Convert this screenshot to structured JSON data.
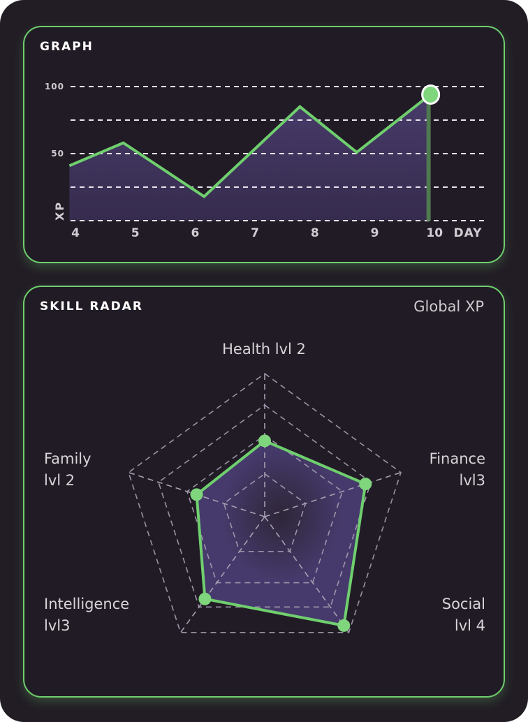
{
  "graph": {
    "title": "GRAPH",
    "chart_data": {
      "type": "area",
      "xlabel": "DAY",
      "ylabel": "XP",
      "x_ticks": [
        "4",
        "5",
        "6",
        "7",
        "8",
        "9",
        "10"
      ],
      "y_ticks": [
        "100",
        "50"
      ],
      "ylim": [
        0,
        100
      ],
      "grid": true,
      "points": [
        {
          "x": 3.9,
          "y": 41
        },
        {
          "x": 4.8,
          "y": 58
        },
        {
          "x": 6.15,
          "y": 18
        },
        {
          "x": 7.75,
          "y": 85
        },
        {
          "x": 8.7,
          "y": 51
        },
        {
          "x": 9.9,
          "y": 93
        }
      ],
      "highlight_index": 5
    },
    "colors": {
      "line": "#6fcf6e",
      "fill": "#4a3d6e"
    }
  },
  "radar": {
    "title": "SKILL RADAR",
    "scope_label": "Global XP",
    "chart_data": {
      "type": "radar",
      "axes": [
        {
          "label": [
            "Health lvl 2"
          ],
          "value": 0.53
        },
        {
          "label": [
            "Finance",
            "lvl3"
          ],
          "value": 0.74
        },
        {
          "label": [
            "Social",
            "lvl 4"
          ],
          "value": 0.94
        },
        {
          "label": [
            "Intelligence",
            "lvl3"
          ],
          "value": 0.71
        },
        {
          "label": [
            "Family",
            "lvl 2"
          ],
          "value": 0.5
        }
      ],
      "range": [
        0,
        1
      ]
    }
  }
}
